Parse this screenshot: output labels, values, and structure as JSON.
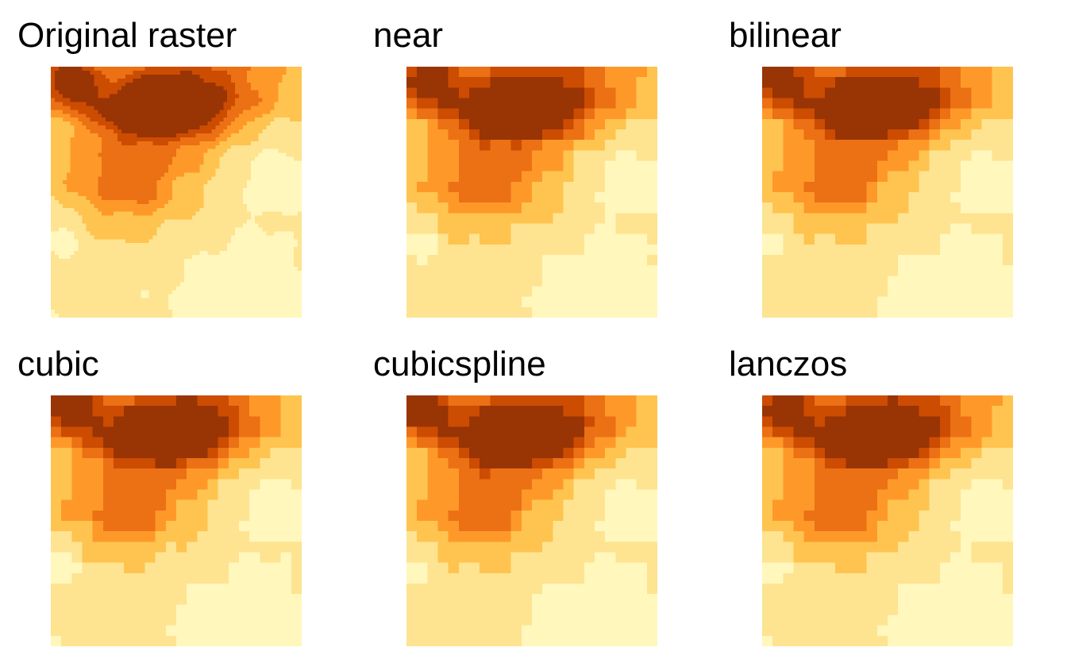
{
  "palette": [
    "#FFF7BC",
    "#FEE391",
    "#FEC44F",
    "#FE9929",
    "#EC7014",
    "#CC4C02",
    "#993404"
  ],
  "panels": [
    {
      "title": "Original raster",
      "method": "original"
    },
    {
      "title": "near",
      "method": "near"
    },
    {
      "title": "bilinear",
      "method": "bilinear"
    },
    {
      "title": "cubic",
      "method": "cubic"
    },
    {
      "title": "cubicspline",
      "method": "cubicspline"
    },
    {
      "title": "lanczos",
      "method": "lanczos"
    }
  ]
}
